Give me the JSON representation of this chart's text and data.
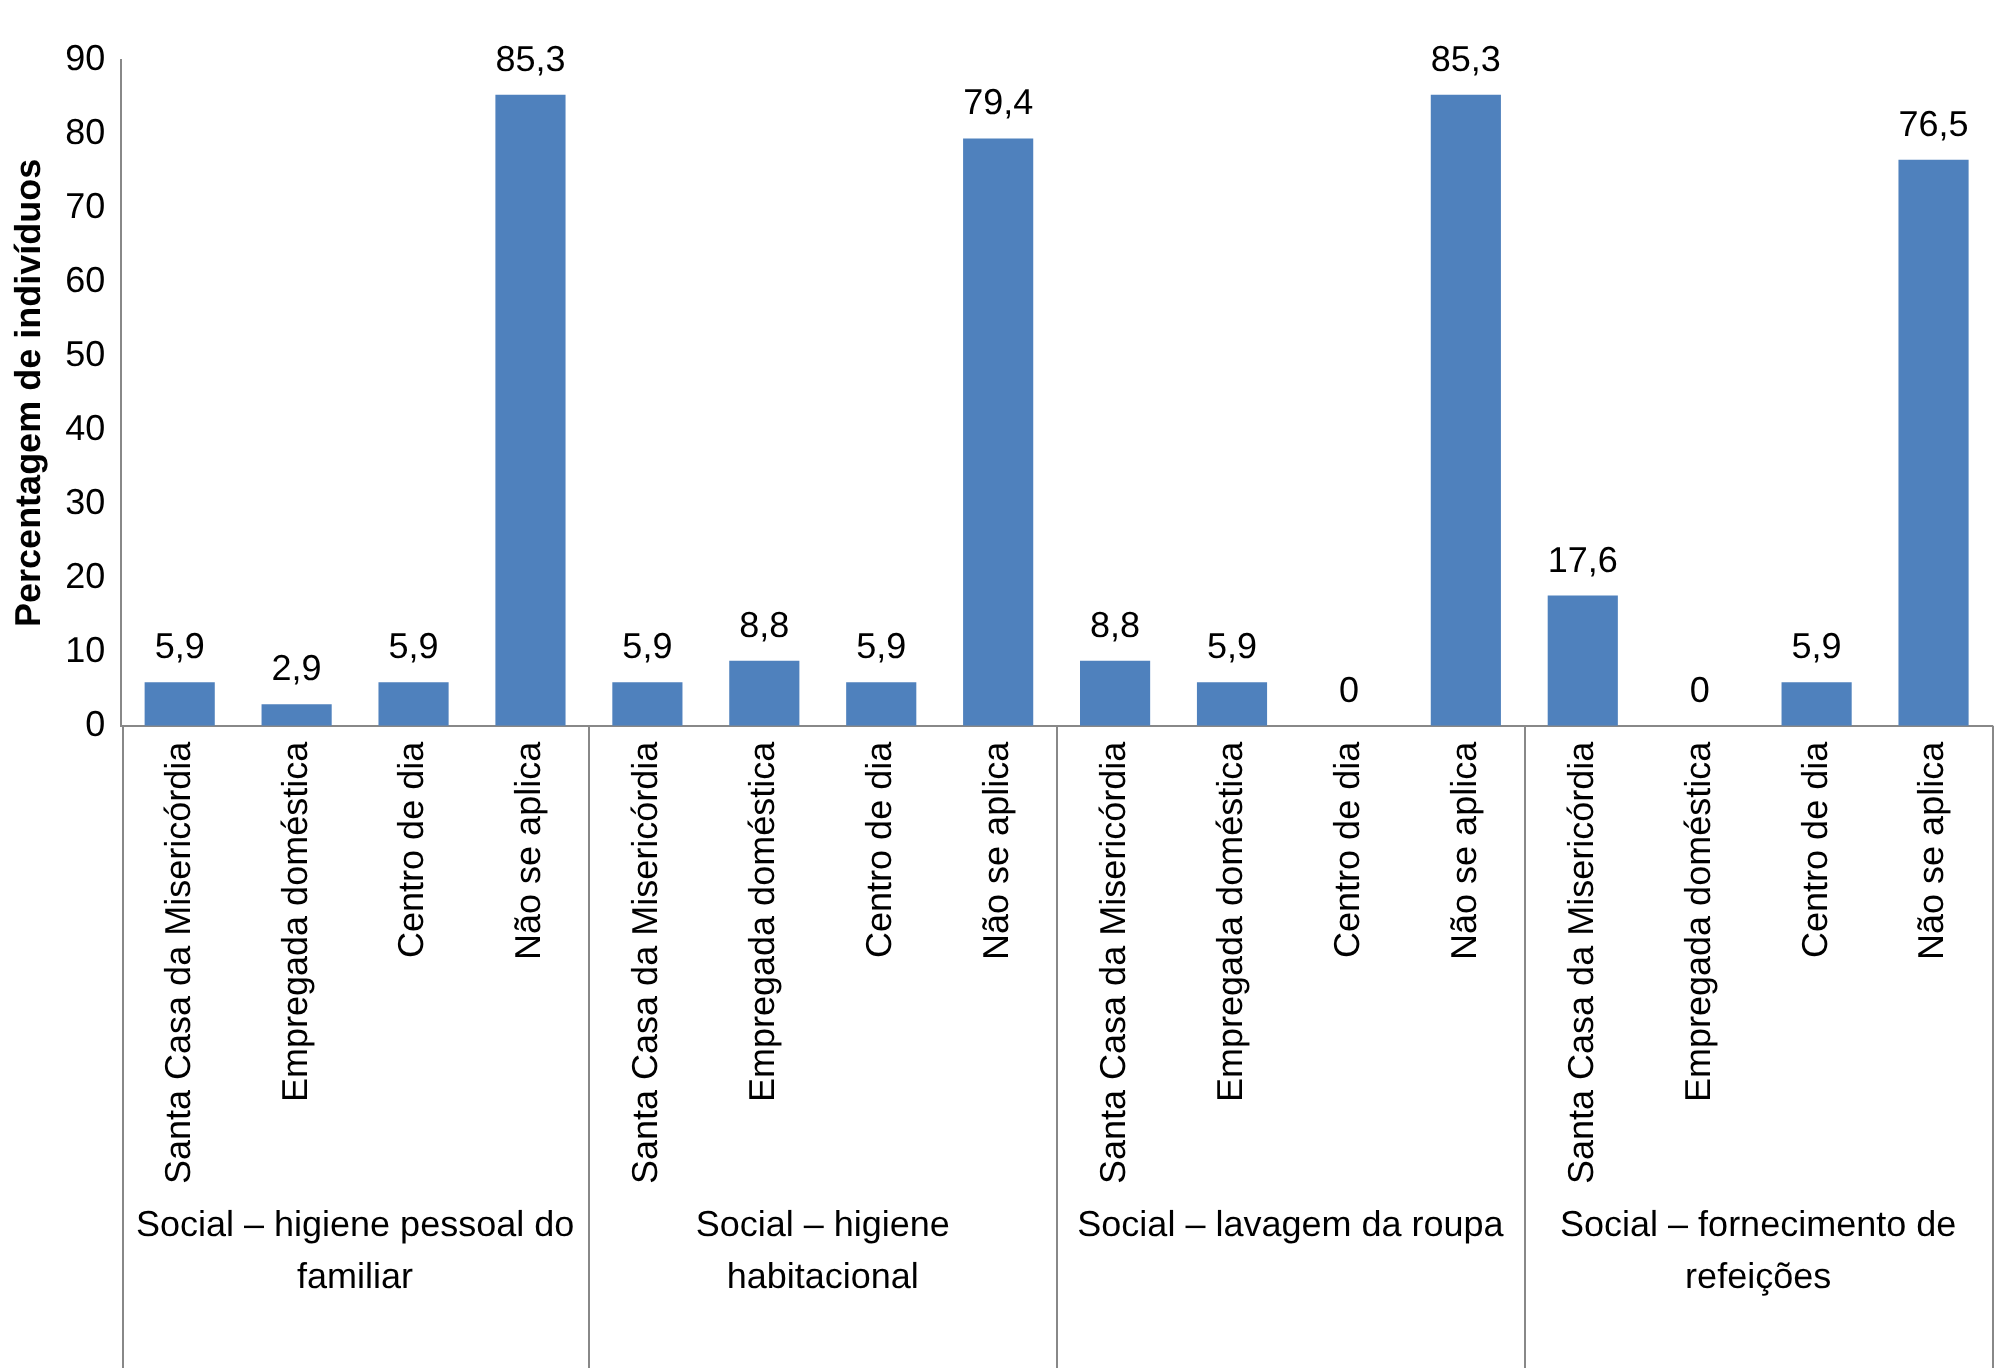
{
  "chart_data": {
    "type": "bar",
    "ylabel": "Percentagem de indivíduos",
    "categories": [
      "Santa Casa da Misericórdia",
      "Empregada doméstica",
      "Centro de dia",
      "Não se aplica",
      "Santa Casa da Misericórdia",
      "Empregada doméstica",
      "Centro de dia",
      "Não se aplica",
      "Santa Casa da Misericórdia",
      "Empregada doméstica",
      "Centro de dia",
      "Não se aplica",
      "Santa Casa da Misericórdia",
      "Empregada doméstica",
      "Centro de dia",
      "Não se aplica"
    ],
    "values": [
      5.9,
      2.9,
      5.9,
      85.3,
      5.9,
      8.8,
      5.9,
      79.4,
      8.8,
      5.9,
      0,
      85.3,
      17.6,
      0,
      5.9,
      76.5
    ],
    "value_labels": [
      "5,9",
      "2,9",
      "5,9",
      "85,3",
      "5,9",
      "8,8",
      "5,9",
      "79,4",
      "8,8",
      "5,9",
      "0",
      "85,3",
      "17,6",
      "0",
      "5,9",
      "76,5"
    ],
    "color": "#4f81bd",
    "ylim": [
      0,
      90
    ],
    "yticks": [
      0,
      10,
      20,
      30,
      40,
      50,
      60,
      70,
      80,
      90
    ],
    "grid": false,
    "legend": false,
    "annotations": [
      "Social – higiene pessoal do familiar",
      "Social – higiene habitacional",
      "Social – lavagem da roupa",
      "Social – fornecimento de refeições"
    ]
  }
}
